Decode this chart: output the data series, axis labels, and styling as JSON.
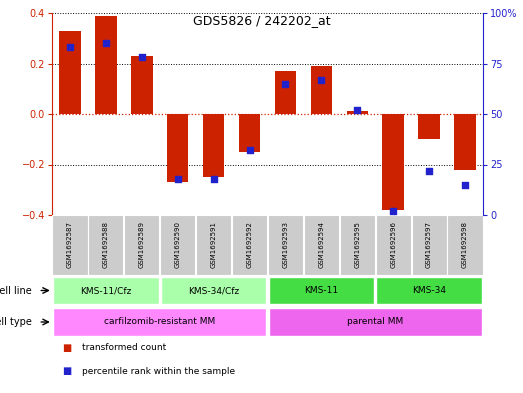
{
  "title": "GDS5826 / 242202_at",
  "samples": [
    "GSM1692587",
    "GSM1692588",
    "GSM1692589",
    "GSM1692590",
    "GSM1692591",
    "GSM1692592",
    "GSM1692593",
    "GSM1692594",
    "GSM1692595",
    "GSM1692596",
    "GSM1692597",
    "GSM1692598"
  ],
  "transformed_count": [
    0.33,
    0.39,
    0.23,
    -0.27,
    -0.25,
    -0.15,
    0.17,
    0.19,
    0.01,
    -0.38,
    -0.1,
    -0.22
  ],
  "percentile_rank": [
    83,
    85,
    78,
    18,
    18,
    32,
    65,
    67,
    52,
    2,
    22,
    15
  ],
  "ylim_left": [
    -0.4,
    0.4
  ],
  "ylim_right": [
    0,
    100
  ],
  "yticks_left": [
    -0.4,
    -0.2,
    0.0,
    0.2,
    0.4
  ],
  "yticks_right": [
    0,
    25,
    50,
    75,
    100
  ],
  "cell_line_groups": [
    {
      "label": "KMS-11/Cfz",
      "start": 0,
      "end": 3,
      "color": "#AAFFAA"
    },
    {
      "label": "KMS-34/Cfz",
      "start": 3,
      "end": 6,
      "color": "#AAFFAA"
    },
    {
      "label": "KMS-11",
      "start": 6,
      "end": 9,
      "color": "#44DD44"
    },
    {
      "label": "KMS-34",
      "start": 9,
      "end": 12,
      "color": "#44DD44"
    }
  ],
  "cell_type_groups": [
    {
      "label": "carfilzomib-resistant MM",
      "start": 0,
      "end": 6,
      "color": "#FF88FF"
    },
    {
      "label": "parental MM",
      "start": 6,
      "end": 12,
      "color": "#EE66EE"
    }
  ],
  "bar_color": "#CC2200",
  "dot_color": "#2222CC",
  "axis_color_left": "#CC2200",
  "axis_color_right": "#2222CC",
  "sample_bg_color": "#CCCCCC",
  "legend_items": [
    {
      "color": "#CC2200",
      "label": "transformed count"
    },
    {
      "color": "#2222CC",
      "label": "percentile rank within the sample"
    }
  ]
}
